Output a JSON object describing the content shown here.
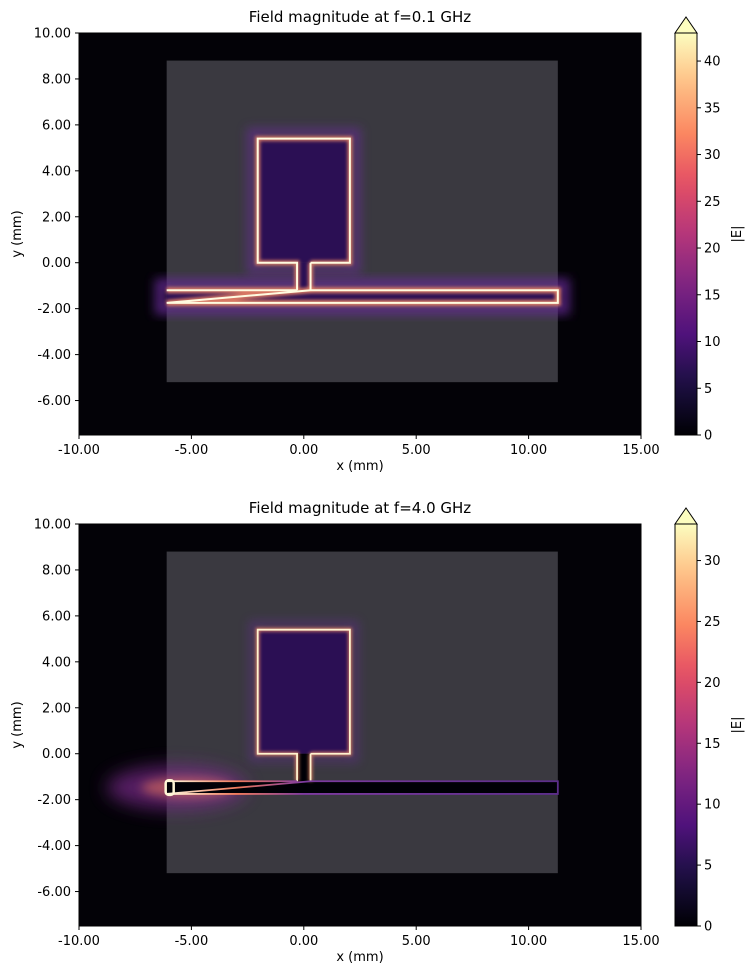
{
  "chart_data": [
    {
      "type": "heatmap",
      "title": "Field magnitude at f=0.1 GHz",
      "xlabel": "x (mm)",
      "ylabel": "y (mm)",
      "xlim": [
        -10,
        15
      ],
      "ylim": [
        -7.5,
        10
      ],
      "x_ticks": [
        "-10.00",
        "-5.00",
        "0.00",
        "5.00",
        "10.00",
        "15.00"
      ],
      "y_ticks": [
        "-6.00",
        "-4.00",
        "-2.00",
        "0.00",
        "2.00",
        "4.00",
        "6.00",
        "8.00",
        "10.00"
      ],
      "colorbar": {
        "label": "|E|",
        "colormap": "magma",
        "range": [
          0,
          43
        ],
        "ticks": [
          "0",
          "5",
          "10",
          "15",
          "20",
          "25",
          "30",
          "35",
          "40"
        ],
        "extend": "max"
      },
      "substrate": {
        "x": [
          -6.1,
          11.3
        ],
        "y": [
          -5.2,
          8.8
        ]
      },
      "patch": {
        "x": [
          -2.05,
          2.05
        ],
        "y": [
          0,
          5.4
        ]
      },
      "feed": {
        "x": [
          -0.3,
          0.3
        ],
        "y": [
          -1.2,
          0
        ]
      },
      "line": {
        "x": [
          -6.1,
          11.3
        ],
        "y": [
          -1.75,
          -1.2
        ]
      },
      "excitation": "uniform"
    },
    {
      "type": "heatmap",
      "title": "Field magnitude at f=4.0 GHz",
      "xlabel": "x (mm)",
      "ylabel": "y (mm)",
      "xlim": [
        -10,
        15
      ],
      "ylim": [
        -7.5,
        10
      ],
      "x_ticks": [
        "-10.00",
        "-5.00",
        "0.00",
        "5.00",
        "10.00",
        "15.00"
      ],
      "y_ticks": [
        "-6.00",
        "-4.00",
        "-2.00",
        "0.00",
        "2.00",
        "4.00",
        "6.00",
        "8.00",
        "10.00"
      ],
      "colorbar": {
        "label": "|E|",
        "colormap": "magma",
        "range": [
          0,
          33
        ],
        "ticks": [
          "0",
          "5",
          "10",
          "15",
          "20",
          "25",
          "30"
        ],
        "extend": "max"
      },
      "substrate": {
        "x": [
          -6.1,
          11.3
        ],
        "y": [
          -5.2,
          8.8
        ]
      },
      "patch": {
        "x": [
          -2.05,
          2.05
        ],
        "y": [
          0,
          5.4
        ]
      },
      "feed": {
        "x": [
          -0.3,
          0.3
        ],
        "y": [
          -1.2,
          0
        ]
      },
      "line": {
        "x": [
          -6.1,
          11.3
        ],
        "y": [
          -1.75,
          -1.2
        ]
      },
      "excitation": "left-port"
    }
  ]
}
